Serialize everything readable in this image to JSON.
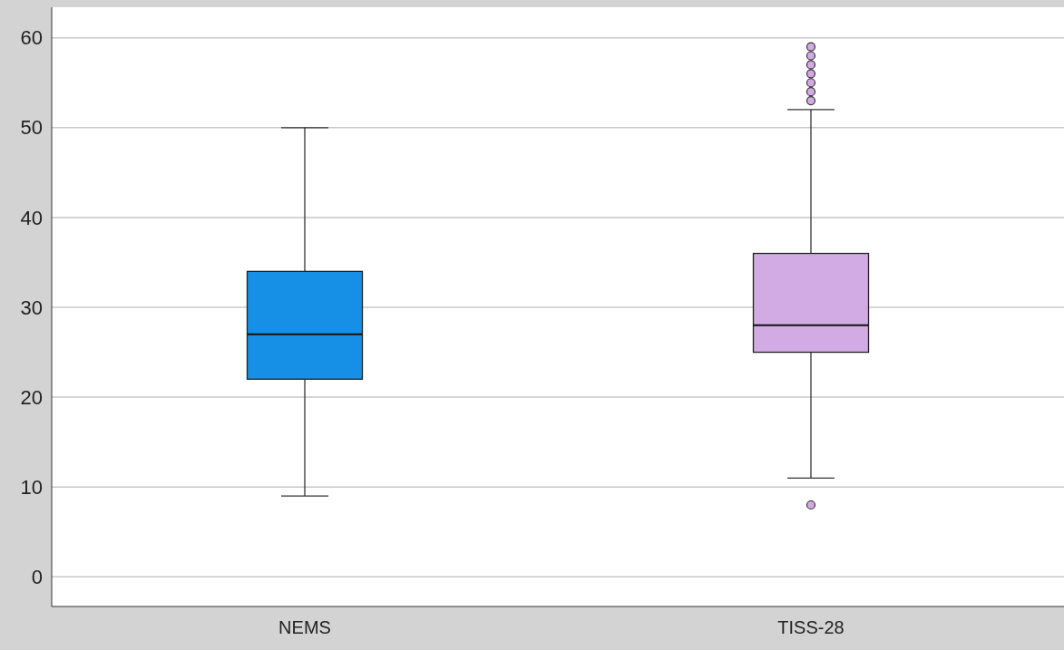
{
  "chart_data": {
    "type": "box",
    "categories": [
      "NEMS",
      "TISS-28"
    ],
    "boxes": [
      {
        "low": 9,
        "q1": 22,
        "median": 27,
        "q3": 34,
        "high": 50
      },
      {
        "low": 11,
        "q1": 25,
        "median": 28,
        "q3": 36,
        "high": 52,
        "outliers": [
          8,
          53,
          54,
          55,
          56,
          57,
          58,
          59
        ]
      }
    ],
    "colors": [
      "#1690e6",
      "#d3abe4"
    ],
    "ylim": [
      -3.3,
      63.4
    ],
    "yticks": [
      0,
      10,
      20,
      30,
      40,
      50,
      60
    ],
    "grid": "y"
  }
}
